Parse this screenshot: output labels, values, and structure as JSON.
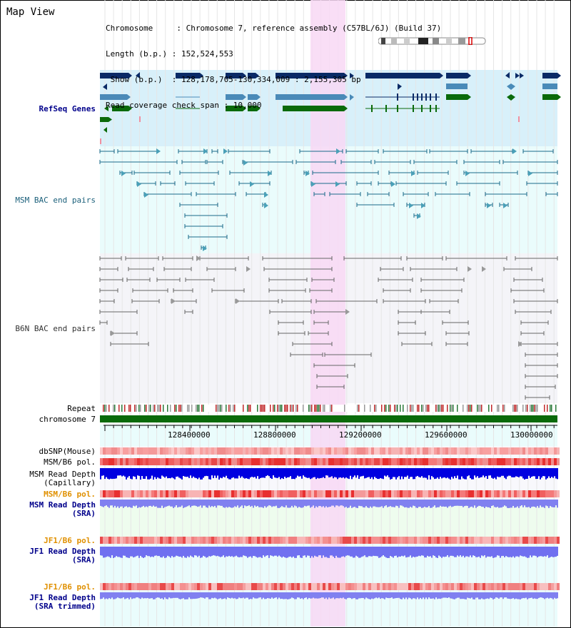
{
  "page": {
    "title": "Map View"
  },
  "info": {
    "chromosome": "Chromosome     : Chromosome 7, reference assembly (C57BL/6J) (Build 37)",
    "length": "Length (b.p.) : 152,524,553",
    "show": " Show (b.p.)  : 128,178,705-130,334,009 : 2,155,305 bp",
    "span": "Read coverage check span : 10,000"
  },
  "tracks": {
    "refseq": "RefSeq Genes",
    "msm_bac": "MSM BAC end pairs",
    "b6n_bac": "B6N BAC end pairs",
    "repeat": "Repeat",
    "chromosome": "chromosome 7",
    "dbsnp": "dbSNP(Mouse)",
    "msm_pol_1": "MSM/B6 pol.",
    "msm_depth_cap_1": "MSM Read Depth",
    "msm_depth_cap_2": "(Capillary)",
    "msm_pol_2": "MSM/B6 pol.",
    "msm_depth_sra_1": "MSM Read Depth",
    "msm_depth_sra_2": "(SRA)",
    "jf1_pol_1": "JF1/B6 pol.",
    "jf1_depth_sra_1": "JF1 Read Depth",
    "jf1_depth_sra_2": "(SRA)",
    "jf1_pol_2": "JF1/B6 pol.",
    "jf1_depth_trim_1": "JF1 Read Depth",
    "jf1_depth_trim_2": "(SRA trimmed)"
  },
  "ruler": {
    "ticks": [
      "128400000",
      "128800000",
      "129200000",
      "129600000",
      "130000000"
    ]
  },
  "colors": {
    "refseq_dark": "#0a2a66",
    "refseq_mid": "#4a8ab8",
    "refseq_green": "#0a6a0a",
    "msm_track": "#1a6a8a",
    "b6n_track": "#666666",
    "highlight": "#f8d8f4",
    "label_blue": "#00008b",
    "label_teal": "#1a5f7a",
    "label_orange": "#e09000"
  }
}
